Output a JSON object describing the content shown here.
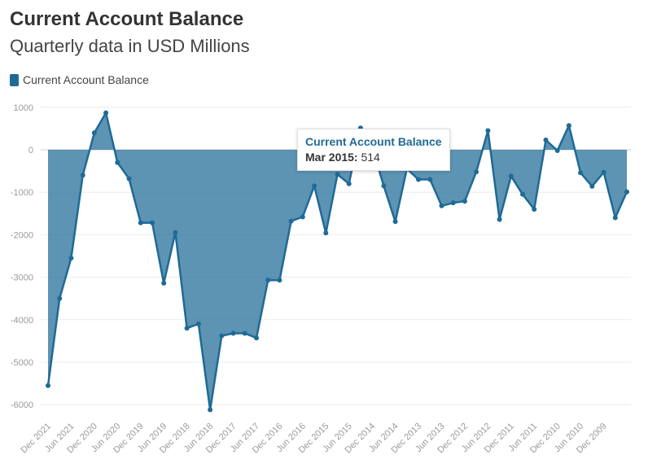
{
  "title": "Current Account Balance",
  "subtitle": "Quarterly data in USD Millions",
  "legend": {
    "label": "Current Account Balance",
    "color": "#1f6a96"
  },
  "tooltip": {
    "series": "Current Account Balance",
    "date": "Mar 2015:",
    "value": "514"
  },
  "chart_data": {
    "type": "area",
    "title": "Current Account Balance",
    "subtitle": "Quarterly data in USD Millions",
    "series": [
      {
        "name": "Current Account Balance",
        "color": "#1f6a96",
        "values": [
          -5550,
          -3500,
          -2550,
          -600,
          400,
          870,
          -300,
          -680,
          -1720,
          -1720,
          -3140,
          -1950,
          -4200,
          -4100,
          -6120,
          -4380,
          -4320,
          -4320,
          -4430,
          -3070,
          -3070,
          -1680,
          -1580,
          -850,
          -1960,
          -580,
          -800,
          514,
          50,
          -850,
          -1690,
          -450,
          -700,
          -700,
          -1320,
          -1250,
          -1210,
          -520,
          450,
          -1640,
          -620,
          -1050,
          -1400,
          230,
          -20,
          570,
          -540,
          -860,
          -530,
          -1600,
          -990
        ]
      }
    ],
    "x_ticks": [
      "Dec 2021",
      "Jun 2021",
      "Dec 2020",
      "Jun 2020",
      "Dec 2019",
      "Jun 2019",
      "Dec 2018",
      "Jun 2018",
      "Dec 2017",
      "Jun 2017",
      "Dec 2016",
      "Jun 2016",
      "Dec 2015",
      "Jun 2015",
      "Dec 2014",
      "Jun 2014",
      "Dec 2013",
      "Jun 2013",
      "Dec 2012",
      "Jun 2012",
      "Dec 2011",
      "Jun 2011",
      "Dec 2010",
      "Jun 2010",
      "Dec 2009"
    ],
    "y_ticks": [
      "1000",
      "0",
      "-1000",
      "-2000",
      "-3000",
      "-4000",
      "-5000",
      "-6000"
    ],
    "ylim": [
      -6400,
      1050
    ],
    "grid": true,
    "legend_position": "top-left"
  }
}
